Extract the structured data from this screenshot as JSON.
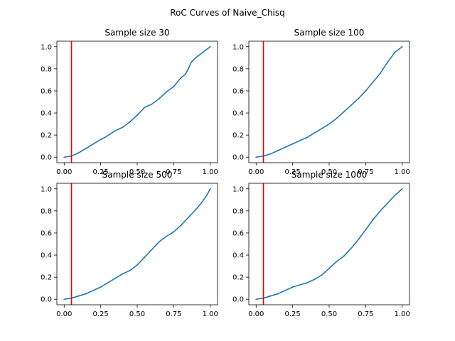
{
  "figure": {
    "suptitle": "RoC Curves of Naive_Chisq"
  },
  "colors": {
    "curve": "#1f77b4",
    "threshold": "#ff0000",
    "axes": "#000000",
    "background": "#ffffff"
  },
  "chart_data": [
    {
      "type": "line",
      "title": "Sample size 30",
      "xlabel": "",
      "ylabel": "",
      "xlim": [
        -0.05,
        1.05
      ],
      "ylim": [
        -0.05,
        1.05
      ],
      "xticks": [
        0.0,
        0.25,
        0.5,
        0.75,
        1.0
      ],
      "xtick_labels": [
        "0.00",
        "0.25",
        "0.50",
        "0.75",
        "1.00"
      ],
      "yticks": [
        0.0,
        0.2,
        0.4,
        0.6,
        0.8,
        1.0
      ],
      "ytick_labels": [
        "0.0",
        "0.2",
        "0.4",
        "0.6",
        "0.8",
        "1.0"
      ],
      "grid": false,
      "vline": 0.05,
      "series": [
        {
          "x": [
            0.0,
            0.05,
            0.1,
            0.15,
            0.2,
            0.25,
            0.28,
            0.35,
            0.4,
            0.45,
            0.5,
            0.55,
            0.6,
            0.65,
            0.7,
            0.75,
            0.8,
            0.83,
            0.85,
            0.87,
            0.9,
            0.95,
            1.0
          ],
          "y": [
            0.0,
            0.01,
            0.04,
            0.08,
            0.12,
            0.16,
            0.18,
            0.24,
            0.27,
            0.32,
            0.38,
            0.45,
            0.48,
            0.53,
            0.59,
            0.64,
            0.72,
            0.75,
            0.8,
            0.86,
            0.9,
            0.95,
            1.0
          ]
        }
      ]
    },
    {
      "type": "line",
      "title": "Sample size 100",
      "xlabel": "",
      "ylabel": "",
      "xlim": [
        -0.05,
        1.05
      ],
      "ylim": [
        -0.05,
        1.05
      ],
      "xticks": [
        0.0,
        0.25,
        0.5,
        0.75,
        1.0
      ],
      "xtick_labels": [
        "0.00",
        "0.25",
        "0.50",
        "0.75",
        "1.00"
      ],
      "yticks": [
        0.0,
        0.2,
        0.4,
        0.6,
        0.8,
        1.0
      ],
      "ytick_labels": [
        "0.0",
        "0.2",
        "0.4",
        "0.6",
        "0.8",
        "1.0"
      ],
      "grid": false,
      "vline": 0.05,
      "series": [
        {
          "x": [
            0.0,
            0.05,
            0.1,
            0.15,
            0.2,
            0.25,
            0.3,
            0.35,
            0.4,
            0.45,
            0.5,
            0.55,
            0.6,
            0.65,
            0.7,
            0.75,
            0.8,
            0.85,
            0.9,
            0.95,
            1.0
          ],
          "y": [
            0.0,
            0.01,
            0.03,
            0.06,
            0.09,
            0.12,
            0.15,
            0.18,
            0.22,
            0.26,
            0.3,
            0.35,
            0.41,
            0.47,
            0.53,
            0.6,
            0.68,
            0.76,
            0.86,
            0.95,
            1.0
          ]
        }
      ]
    },
    {
      "type": "line",
      "title": "Sample size 500",
      "xlabel": "",
      "ylabel": "",
      "xlim": [
        -0.05,
        1.05
      ],
      "ylim": [
        -0.05,
        1.05
      ],
      "xticks": [
        0.0,
        0.25,
        0.5,
        0.75,
        1.0
      ],
      "xtick_labels": [
        "0.00",
        "0.25",
        "0.50",
        "0.75",
        "1.00"
      ],
      "yticks": [
        0.0,
        0.2,
        0.4,
        0.6,
        0.8,
        1.0
      ],
      "ytick_labels": [
        "0.0",
        "0.2",
        "0.4",
        "0.6",
        "0.8",
        "1.0"
      ],
      "grid": false,
      "vline": 0.05,
      "series": [
        {
          "x": [
            0.0,
            0.05,
            0.1,
            0.15,
            0.2,
            0.25,
            0.3,
            0.35,
            0.4,
            0.45,
            0.5,
            0.55,
            0.6,
            0.65,
            0.7,
            0.75,
            0.8,
            0.85,
            0.9,
            0.95,
            0.98,
            1.0
          ],
          "y": [
            0.0,
            0.01,
            0.03,
            0.05,
            0.08,
            0.11,
            0.15,
            0.19,
            0.23,
            0.26,
            0.31,
            0.38,
            0.45,
            0.52,
            0.57,
            0.61,
            0.67,
            0.74,
            0.81,
            0.89,
            0.95,
            1.0
          ]
        }
      ]
    },
    {
      "type": "line",
      "title": "Sample size 1000",
      "xlabel": "",
      "ylabel": "",
      "xlim": [
        -0.05,
        1.05
      ],
      "ylim": [
        -0.05,
        1.05
      ],
      "xticks": [
        0.0,
        0.25,
        0.5,
        0.75,
        1.0
      ],
      "xtick_labels": [
        "0.00",
        "0.25",
        "0.50",
        "0.75",
        "1.00"
      ],
      "yticks": [
        0.0,
        0.2,
        0.4,
        0.6,
        0.8,
        1.0
      ],
      "ytick_labels": [
        "0.0",
        "0.2",
        "0.4",
        "0.6",
        "0.8",
        "1.0"
      ],
      "grid": false,
      "vline": 0.05,
      "series": [
        {
          "x": [
            0.0,
            0.05,
            0.1,
            0.15,
            0.2,
            0.25,
            0.3,
            0.35,
            0.4,
            0.45,
            0.5,
            0.55,
            0.6,
            0.65,
            0.7,
            0.75,
            0.8,
            0.85,
            0.9,
            0.95,
            1.0
          ],
          "y": [
            0.0,
            0.01,
            0.03,
            0.05,
            0.08,
            0.11,
            0.13,
            0.15,
            0.18,
            0.22,
            0.28,
            0.34,
            0.39,
            0.46,
            0.54,
            0.63,
            0.72,
            0.8,
            0.87,
            0.94,
            1.0
          ]
        }
      ]
    }
  ]
}
